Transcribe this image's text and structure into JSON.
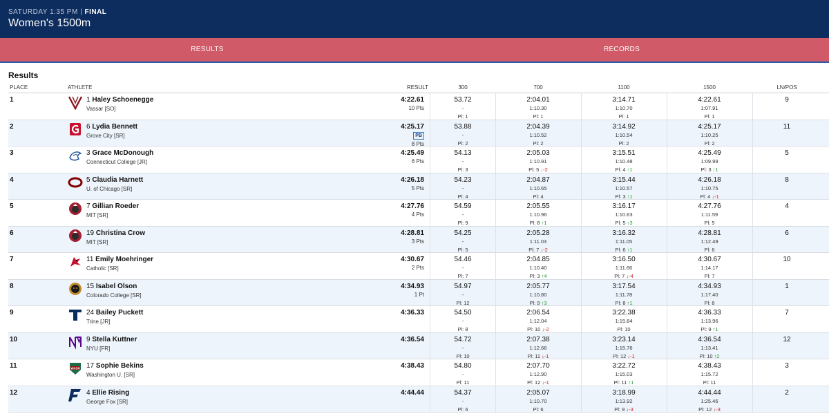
{
  "header": {
    "meta_prefix": "SATURDAY 1:35 PM | ",
    "meta_status": "FINAL",
    "title": "Women's 1500m"
  },
  "tabs": [
    {
      "label": "RESULTS"
    },
    {
      "label": "RECORDS"
    }
  ],
  "section_title": "Results",
  "columns": {
    "place": "PLACE",
    "athlete": "ATHLETE",
    "result": "RESULT",
    "s1": "300",
    "s2": "700",
    "s3": "1100",
    "s4": "1500",
    "lane": "LN/POS"
  },
  "rows": [
    {
      "place": "1",
      "num": "1",
      "name": "Haley Schoenegge",
      "school": "Vassar [SO]",
      "result": "4:22.61",
      "pb": "",
      "pts": "10 Pts",
      "logo": "vassar-logo",
      "lane": "9",
      "splits": [
        {
          "t": "53.72",
          "lap": "-",
          "pl": "Pl: 1",
          "mv": "",
          "dir": ""
        },
        {
          "t": "2:04.01",
          "lap": "1:10.30",
          "pl": "Pl: 1",
          "mv": "",
          "dir": ""
        },
        {
          "t": "3:14.71",
          "lap": "1:10.70",
          "pl": "Pl: 1",
          "mv": "",
          "dir": ""
        },
        {
          "t": "4:22.61",
          "lap": "1:07.91",
          "pl": "Pl: 1",
          "mv": "",
          "dir": ""
        }
      ]
    },
    {
      "place": "2",
      "num": "6",
      "name": "Lydia Bennett",
      "school": "Grove City [SR]",
      "result": "4:25.17",
      "pb": "PB",
      "pts": "8 Pts",
      "logo": "grove-city-logo",
      "lane": "11",
      "splits": [
        {
          "t": "53.88",
          "lap": "-",
          "pl": "Pl: 2",
          "mv": "",
          "dir": ""
        },
        {
          "t": "2:04.39",
          "lap": "1:10.52",
          "pl": "Pl: 2",
          "mv": "",
          "dir": ""
        },
        {
          "t": "3:14.92",
          "lap": "1:10.54",
          "pl": "Pl: 2",
          "mv": "",
          "dir": ""
        },
        {
          "t": "4:25.17",
          "lap": "1:10.25",
          "pl": "Pl: 2",
          "mv": "",
          "dir": ""
        }
      ]
    },
    {
      "place": "3",
      "num": "3",
      "name": "Grace McDonough",
      "school": "Connecticut College [JR]",
      "result": "4:25.49",
      "pb": "",
      "pts": "6 Pts",
      "logo": "connecticut-college-logo",
      "lane": "5",
      "splits": [
        {
          "t": "54.13",
          "lap": "-",
          "pl": "Pl: 3",
          "mv": "",
          "dir": ""
        },
        {
          "t": "2:05.03",
          "lap": "1:10.91",
          "pl": "Pl: 5",
          "mv": "↓-2",
          "dir": "dn"
        },
        {
          "t": "3:15.51",
          "lap": "1:10.48",
          "pl": "Pl: 4",
          "mv": "↑1",
          "dir": "up"
        },
        {
          "t": "4:25.49",
          "lap": "1:09.99",
          "pl": "Pl: 3",
          "mv": "↑1",
          "dir": "up"
        }
      ]
    },
    {
      "place": "4",
      "num": "5",
      "name": "Claudia Harnett",
      "school": "U. of Chicago [SR]",
      "result": "4:26.18",
      "pb": "",
      "pts": "5 Pts",
      "logo": "uchicago-logo",
      "lane": "8",
      "splits": [
        {
          "t": "54.23",
          "lap": "-",
          "pl": "Pl: 4",
          "mv": "",
          "dir": ""
        },
        {
          "t": "2:04.87",
          "lap": "1:10.65",
          "pl": "Pl: 4",
          "mv": "",
          "dir": ""
        },
        {
          "t": "3:15.44",
          "lap": "1:10.57",
          "pl": "Pl: 3",
          "mv": "↑1",
          "dir": "up"
        },
        {
          "t": "4:26.18",
          "lap": "1:10.75",
          "pl": "Pl: 4",
          "mv": "↓-1",
          "dir": "dn"
        }
      ]
    },
    {
      "place": "5",
      "num": "7",
      "name": "Gillian Roeder",
      "school": "MIT [SR]",
      "result": "4:27.76",
      "pb": "",
      "pts": "4 Pts",
      "logo": "mit-logo",
      "lane": "4",
      "splits": [
        {
          "t": "54.59",
          "lap": "-",
          "pl": "Pl: 9",
          "mv": "",
          "dir": ""
        },
        {
          "t": "2:05.55",
          "lap": "1:10.96",
          "pl": "Pl: 8",
          "mv": "↑1",
          "dir": "up"
        },
        {
          "t": "3:16.17",
          "lap": "1:10.63",
          "pl": "Pl: 5",
          "mv": "↑3",
          "dir": "up"
        },
        {
          "t": "4:27.76",
          "lap": "1:11.59",
          "pl": "Pl: 5",
          "mv": "",
          "dir": ""
        }
      ]
    },
    {
      "place": "6",
      "num": "19",
      "name": "Christina Crow",
      "school": "MIT [SR]",
      "result": "4:28.81",
      "pb": "",
      "pts": "3 Pts",
      "logo": "mit-logo",
      "lane": "6",
      "splits": [
        {
          "t": "54.25",
          "lap": "-",
          "pl": "Pl: 5",
          "mv": "",
          "dir": ""
        },
        {
          "t": "2:05.28",
          "lap": "1:11.03",
          "pl": "Pl: 7",
          "mv": "↓-2",
          "dir": "dn"
        },
        {
          "t": "3:16.32",
          "lap": "1:11.05",
          "pl": "Pl: 6",
          "mv": "↑1",
          "dir": "up"
        },
        {
          "t": "4:28.81",
          "lap": "1:12.49",
          "pl": "Pl: 6",
          "mv": "",
          "dir": ""
        }
      ]
    },
    {
      "place": "7",
      "num": "11",
      "name": "Emily Moehringer",
      "school": "Catholic [SR]",
      "result": "4:30.67",
      "pb": "",
      "pts": "2 Pts",
      "logo": "catholic-logo",
      "lane": "10",
      "splits": [
        {
          "t": "54.46",
          "lap": "-",
          "pl": "Pl: 7",
          "mv": "",
          "dir": ""
        },
        {
          "t": "2:04.85",
          "lap": "1:10.40",
          "pl": "Pl: 3",
          "mv": "↑4",
          "dir": "up"
        },
        {
          "t": "3:16.50",
          "lap": "1:11.66",
          "pl": "Pl: 7",
          "mv": "↓-4",
          "dir": "dn"
        },
        {
          "t": "4:30.67",
          "lap": "1:14.17",
          "pl": "Pl: 7",
          "mv": "",
          "dir": ""
        }
      ]
    },
    {
      "place": "8",
      "num": "15",
      "name": "Isabel Olson",
      "school": "Colorado College [SR]",
      "result": "4:34.93",
      "pb": "",
      "pts": "1 Pt",
      "logo": "colorado-college-logo",
      "lane": "1",
      "splits": [
        {
          "t": "54.97",
          "lap": "-",
          "pl": "Pl: 12",
          "mv": "",
          "dir": ""
        },
        {
          "t": "2:05.77",
          "lap": "1:10.80",
          "pl": "Pl: 9",
          "mv": "↑3",
          "dir": "up"
        },
        {
          "t": "3:17.54",
          "lap": "1:11.78",
          "pl": "Pl: 8",
          "mv": "↑1",
          "dir": "up"
        },
        {
          "t": "4:34.93",
          "lap": "1:17.40",
          "pl": "Pl: 8",
          "mv": "",
          "dir": ""
        }
      ]
    },
    {
      "place": "9",
      "num": "24",
      "name": "Bailey Puckett",
      "school": "Trine [JR]",
      "result": "4:36.33",
      "pb": "",
      "pts": "",
      "logo": "trine-logo",
      "lane": "7",
      "splits": [
        {
          "t": "54.50",
          "lap": "-",
          "pl": "Pl: 8",
          "mv": "",
          "dir": ""
        },
        {
          "t": "2:06.54",
          "lap": "1:12.04",
          "pl": "Pl: 10",
          "mv": "↓-2",
          "dir": "dn"
        },
        {
          "t": "3:22.38",
          "lap": "1:15.84",
          "pl": "Pl: 10",
          "mv": "",
          "dir": ""
        },
        {
          "t": "4:36.33",
          "lap": "1:13.96",
          "pl": "Pl: 9",
          "mv": "↑1",
          "dir": "up"
        }
      ]
    },
    {
      "place": "10",
      "num": "9",
      "name": "Stella Kuttner",
      "school": "NYU [FR]",
      "result": "4:36.54",
      "pb": "",
      "pts": "",
      "logo": "nyu-logo",
      "lane": "12",
      "splits": [
        {
          "t": "54.72",
          "lap": "-",
          "pl": "Pl: 10",
          "mv": "",
          "dir": ""
        },
        {
          "t": "2:07.38",
          "lap": "1:12.66",
          "pl": "Pl: 11",
          "mv": "↓-1",
          "dir": "dn"
        },
        {
          "t": "3:23.14",
          "lap": "1:15.76",
          "pl": "Pl: 12",
          "mv": "↓-1",
          "dir": "dn"
        },
        {
          "t": "4:36.54",
          "lap": "1:13.41",
          "pl": "Pl: 10",
          "mv": "↑2",
          "dir": "up"
        }
      ]
    },
    {
      "place": "11",
      "num": "17",
      "name": "Sophie Bekins",
      "school": "Washington U. [SR]",
      "result": "4:38.43",
      "pb": "",
      "pts": "",
      "logo": "washu-logo",
      "lane": "3",
      "splits": [
        {
          "t": "54.80",
          "lap": "-",
          "pl": "Pl: 11",
          "mv": "",
          "dir": ""
        },
        {
          "t": "2:07.70",
          "lap": "1:12.90",
          "pl": "Pl: 12",
          "mv": "↓-1",
          "dir": "dn"
        },
        {
          "t": "3:22.72",
          "lap": "1:15.03",
          "pl": "Pl: 11",
          "mv": "↑1",
          "dir": "up"
        },
        {
          "t": "4:38.43",
          "lap": "1:15.72",
          "pl": "Pl: 11",
          "mv": "",
          "dir": ""
        }
      ]
    },
    {
      "place": "12",
      "num": "4",
      "name": "Ellie Rising",
      "school": "George Fox [SR]",
      "result": "4:44.44",
      "pb": "",
      "pts": "",
      "logo": "george-fox-logo",
      "lane": "2",
      "splits": [
        {
          "t": "54.37",
          "lap": "-",
          "pl": "Pl: 6",
          "mv": "",
          "dir": ""
        },
        {
          "t": "2:05.07",
          "lap": "1:10.70",
          "pl": "Pl: 6",
          "mv": "",
          "dir": ""
        },
        {
          "t": "3:18.99",
          "lap": "1:13.92",
          "pl": "Pl: 9",
          "mv": "↓-3",
          "dir": "dn"
        },
        {
          "t": "4:44.44",
          "lap": "1:25.46",
          "pl": "Pl: 12",
          "mv": "↓-3",
          "dir": "dn"
        }
      ]
    }
  ],
  "colors": {
    "header_bg": "#0d2d5e",
    "tab_bg": "#d05a67",
    "up": "#1f9b2d",
    "down": "#cc1e1e"
  }
}
